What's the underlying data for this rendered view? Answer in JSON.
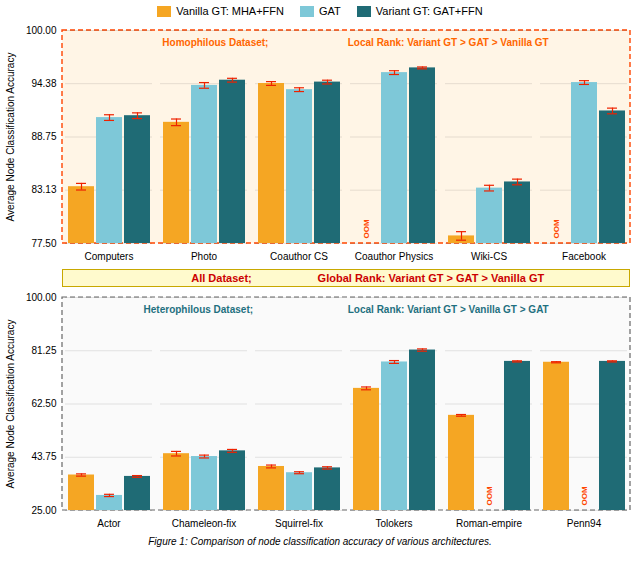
{
  "chart_data": [
    {
      "type": "bar",
      "categories": [
        "Computers",
        "Photo",
        "Coauthor CS",
        "Coauthor Physics",
        "Wiki-CS",
        "Facebook"
      ],
      "ylabel": "Average Node Classification Accuracy",
      "ylim": [
        77.5,
        100.0
      ],
      "yticks": [
        {
          "value": 77.5,
          "label": "77.50"
        },
        83.13,
        88.75,
        94.38,
        {
          "value": 100.0,
          "label": "100.00"
        }
      ],
      "grid": true,
      "legend": "top",
      "missing_label": "OOM",
      "annotations": [
        {
          "text": "Homophilous Dataset;",
          "color": "#FF6600"
        },
        {
          "text": "Local Rank: Variant GT > GAT > Vanilla GT",
          "color": "#FF6600"
        }
      ],
      "series": [
        {
          "name": "Vanilla GT: MHA+FFN",
          "color": "#F5A623",
          "values": [
            83.5,
            90.3,
            94.4,
            null,
            78.3,
            null
          ],
          "errors": [
            0.35,
            0.35,
            0.2,
            null,
            0.45,
            null
          ]
        },
        {
          "name": "GAT",
          "color": "#7EC8D8",
          "values": [
            90.8,
            94.2,
            93.75,
            95.55,
            83.35,
            94.5
          ],
          "errors": [
            0.3,
            0.3,
            0.2,
            0.2,
            0.3,
            0.2
          ]
        },
        {
          "name": "Variant GT: GAT+FFN",
          "color": "#1F6B75",
          "values": [
            91.0,
            94.75,
            94.55,
            96.05,
            84.0,
            91.5
          ],
          "errors": [
            0.3,
            0.2,
            0.2,
            0.1,
            0.3,
            0.3
          ]
        }
      ]
    },
    {
      "type": "bar",
      "categories": [
        "Actor",
        "Chameleon-fix",
        "Squirrel-fix",
        "Tolokers",
        "Roman-empire",
        "Penn94"
      ],
      "ylabel": "Average Node Classification Accuracy",
      "ylim": [
        25.0,
        100.0
      ],
      "yticks": [
        {
          "value": 25.0,
          "label": "25.00"
        },
        43.75,
        {
          "value": 62.5,
          "label": "62.50"
        },
        81.25,
        {
          "value": 100.0,
          "label": "100.00"
        }
      ],
      "grid": true,
      "missing_label": "OOM",
      "annotations": [
        {
          "text": "Heterophilous Dataset;",
          "color": "#1F7080"
        },
        {
          "text": "Local Rank: Variant GT > Vanilla GT > GAT",
          "color": "#1F7080"
        }
      ],
      "series": [
        {
          "name": "Vanilla GT: MHA+FFN",
          "color": "#F5A623",
          "values": [
            37.5,
            45.0,
            40.5,
            68.0,
            58.5,
            77.2
          ],
          "errors": [
            0.4,
            0.8,
            0.5,
            0.5,
            0.3,
            0.2
          ]
        },
        {
          "name": "GAT",
          "color": "#7EC8D8",
          "values": [
            30.3,
            44.0,
            38.3,
            77.3,
            null,
            null
          ],
          "errors": [
            0.4,
            0.5,
            0.35,
            0.5,
            null,
            null
          ]
        },
        {
          "name": "Variant GT: GAT+FFN",
          "color": "#1F6B75",
          "values": [
            37.0,
            46.0,
            40.0,
            81.5,
            77.5,
            77.5
          ],
          "errors": [
            0.3,
            0.5,
            0.4,
            0.4,
            0.2,
            0.2
          ]
        }
      ]
    }
  ],
  "annotations": [
    {
      "text": "All Dataset;",
      "color": "#CC0000"
    },
    {
      "text": "Global Rank: Variant GT > GAT > Vanilla GT",
      "color": "#CC0000"
    }
  ],
  "caption": "Figure 1: Comparison of node classification accuracy of various architectures."
}
